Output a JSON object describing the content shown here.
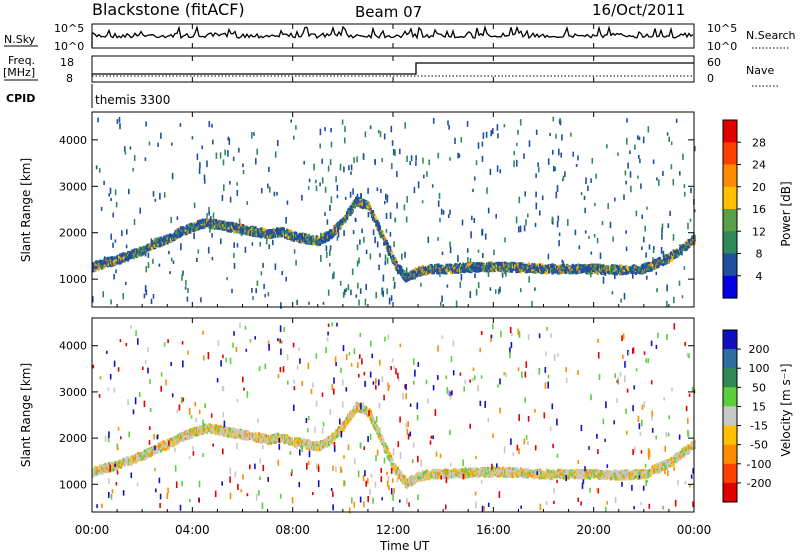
{
  "header": {
    "station": "Blackstone (fitACF)",
    "beam": "Beam 07",
    "date": "16/Oct/2011"
  },
  "summary": {
    "nsky_label": "N.Sky",
    "nsky_ticks": [
      "10^5",
      "10^0"
    ],
    "nsearch_label": "N.Search",
    "freq_label_1": "Freq.",
    "freq_label_2": "[MHz]",
    "freq_ticks": [
      "18",
      "8"
    ],
    "nave_label": "Nave",
    "nave_ticks": [
      "60",
      "0"
    ],
    "cpid_label": "CPID",
    "cpid_value": "themis 3300"
  },
  "chart_data": [
    {
      "type": "heatmap",
      "name": "power",
      "ylabel": "Slant Range [km]",
      "ylim": [
        400,
        4600
      ],
      "yticks": [
        1000,
        2000,
        3000,
        4000
      ],
      "colorbar_label": "Power [dB]",
      "colorbar_ticks": [
        28,
        24,
        20,
        16,
        12,
        8,
        4
      ],
      "colorbar_colors": [
        "#e00000",
        "#ff4000",
        "#ff8c00",
        "#ffc000",
        "#5aa04a",
        "#2e8b57",
        "#1f4fa0",
        "#0000e0"
      ]
    },
    {
      "type": "heatmap",
      "name": "velocity",
      "ylabel": "Slant Range [km]",
      "ylim": [
        400,
        4600
      ],
      "yticks": [
        1000,
        2000,
        3000,
        4000
      ],
      "colorbar_label": "Velocity [m s⁻¹]",
      "colorbar_ticks": [
        200,
        100,
        50,
        15,
        -15,
        -50,
        -100,
        -200
      ],
      "colorbar_colors": [
        "#1010c0",
        "#2e6e9e",
        "#2e8b57",
        "#5ccd3c",
        "#c8c8c8",
        "#ffc000",
        "#ff8c00",
        "#ff4000",
        "#e00000"
      ]
    }
  ],
  "time_axis": {
    "xlabel": "Time UT",
    "ticks": [
      "00:00",
      "04:00",
      "08:00",
      "12:00",
      "16:00",
      "20:00",
      "00:00"
    ],
    "range_hours": [
      0,
      24
    ]
  },
  "ridge": {
    "hours": [
      0,
      0.5,
      1,
      1.5,
      2,
      2.5,
      3,
      3.5,
      4,
      4.5,
      5,
      5.5,
      6,
      6.5,
      7,
      7.5,
      8,
      8.5,
      9,
      9.5,
      10,
      10.5,
      11,
      11.5,
      12,
      12.5,
      13,
      13.5,
      14,
      15,
      16,
      17,
      18,
      19,
      20,
      21,
      22,
      23,
      24
    ],
    "range_km": [
      1300,
      1380,
      1450,
      1550,
      1650,
      1800,
      1900,
      2050,
      2150,
      2250,
      2200,
      2150,
      2100,
      2050,
      2000,
      2050,
      1950,
      1900,
      1850,
      2000,
      2300,
      2700,
      2600,
      2000,
      1400,
      1050,
      1200,
      1250,
      1250,
      1280,
      1300,
      1280,
      1250,
      1250,
      1250,
      1230,
      1250,
      1500,
      1900
    ]
  }
}
